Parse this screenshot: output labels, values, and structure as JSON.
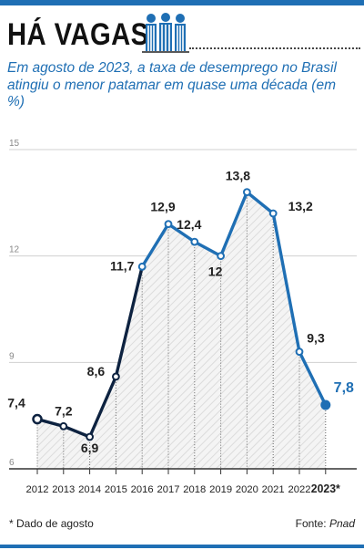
{
  "header": {
    "title": "HÁ VAGAS",
    "icon": "people-icon",
    "accent_color": "#1f6fb4",
    "dark_color": "#0d2240"
  },
  "subtitle": "Em agosto de 2023, a taxa de desemprego no Brasil atingiu o menor patamar em quase uma década (em %)",
  "chart_data": {
    "type": "line",
    "title": "",
    "xlabel": "",
    "ylabel": "",
    "ylim": [
      6,
      15
    ],
    "yticks": [
      "6",
      "9",
      "12",
      "15"
    ],
    "categories": [
      "2012",
      "2013",
      "2014",
      "2015",
      "2016",
      "2017",
      "2018",
      "2019",
      "2020",
      "2021",
      "2022",
      "2023*"
    ],
    "series": [
      {
        "values": [
          7.4,
          7.2,
          6.9,
          8.6,
          11.7,
          12.9,
          12.4,
          12.0,
          13.8,
          13.2,
          9.3,
          7.8
        ],
        "labels": [
          "7,4",
          "7,2",
          "6,9",
          "8,6",
          "11,7",
          "12,9",
          "12,4",
          "12",
          "13,8",
          "13,2",
          "9,3",
          "7,8"
        ]
      }
    ],
    "grid": "horizontal",
    "area_fill": "hatched gray",
    "line_colors": {
      "early": "#0d2240",
      "late": "#1f6fb4",
      "highlight": "#1f6fb4"
    }
  },
  "footer": {
    "footnote": "* Dado de agosto",
    "source_label": "Fonte: ",
    "source_name": "Pnad"
  }
}
